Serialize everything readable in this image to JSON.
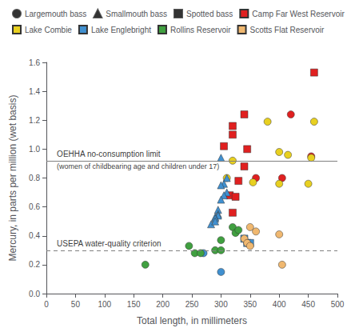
{
  "chart_data": {
    "type": "scatter",
    "xlabel": "Total length, in millimeters",
    "ylabel": "Mercury, in parts per million (wet basis)",
    "xlim": [
      0,
      500
    ],
    "ylim": [
      0,
      1.6
    ],
    "xticks": [
      0,
      50,
      100,
      150,
      200,
      250,
      300,
      350,
      400,
      450,
      500
    ],
    "yticks": [
      {
        "value": 0,
        "label": "0.0"
      },
      0.2,
      0.4,
      0.6,
      0.8,
      {
        "value": 1.0,
        "label": "1.0"
      },
      1.2,
      1.4,
      1.6
    ],
    "grid": false,
    "legend": "upper left",
    "species": [
      {
        "name": "Largemouth bass",
        "marker": "circle"
      },
      {
        "name": "Smallmouth bass",
        "marker": "triangle"
      },
      {
        "name": "Spotted bass",
        "marker": "square"
      }
    ],
    "series": [
      {
        "name": "Camp Far West Reservoir",
        "color": "#e02020",
        "x": [
          460,
          340,
          320,
          320,
          305,
          345,
          340,
          330,
          315,
          325,
          320,
          360,
          405,
          420,
          455
        ],
        "values": [
          1.53,
          1.24,
          1.16,
          1.1,
          1.02,
          1.0,
          0.88,
          0.78,
          0.68,
          0.67,
          0.56,
          0.8,
          0.8,
          1.24,
          0.95
        ],
        "species": [
          "Spotted bass",
          "Spotted bass",
          "Spotted bass",
          "Spotted bass",
          "Spotted bass",
          "Spotted bass",
          "Spotted bass",
          "Spotted bass",
          "Spotted bass",
          "Spotted bass",
          "Spotted bass",
          "Largemouth bass",
          "Largemouth bass",
          "Largemouth bass",
          "Largemouth bass"
        ]
      },
      {
        "name": "Lake Combie",
        "color": "#e8d020",
        "x": [
          380,
          400,
          415,
          455,
          460,
          320,
          310,
          355,
          400,
          450
        ],
        "values": [
          1.19,
          0.98,
          0.96,
          0.94,
          1.19,
          0.92,
          0.8,
          0.77,
          0.76,
          0.76
        ],
        "species": [
          "Largemouth bass",
          "Largemouth bass",
          "Largemouth bass",
          "Largemouth bass",
          "Largemouth bass",
          "Largemouth bass",
          "Largemouth bass",
          "Largemouth bass",
          "Largemouth bass",
          "Largemouth bass"
        ]
      },
      {
        "name": "Lake Englebright",
        "color": "#4090d0",
        "x": [
          300,
          310,
          305,
          300,
          310,
          305,
          300,
          295,
          295,
          295,
          290,
          290,
          283,
          290,
          270,
          300,
          340,
          345,
          350
        ],
        "values": [
          0.94,
          0.8,
          0.76,
          0.75,
          0.7,
          0.68,
          0.65,
          0.58,
          0.55,
          0.54,
          0.53,
          0.52,
          0.48,
          0.5,
          0.28,
          0.15,
          0.38,
          0.35,
          0.35
        ],
        "species": [
          "Smallmouth bass",
          "Smallmouth bass",
          "Smallmouth bass",
          "Smallmouth bass",
          "Smallmouth bass",
          "Smallmouth bass",
          "Smallmouth bass",
          "Smallmouth bass",
          "Smallmouth bass",
          "Smallmouth bass",
          "Smallmouth bass",
          "Smallmouth bass",
          "Smallmouth bass",
          "Smallmouth bass",
          "Largemouth bass",
          "Largemouth bass",
          "Spotted bass",
          "Spotted bass",
          "Spotted bass"
        ]
      },
      {
        "name": "Rollins Reservoir",
        "color": "#40a040",
        "x": [
          170,
          245,
          255,
          265,
          290,
          300,
          300,
          320,
          325,
          330
        ],
        "values": [
          0.2,
          0.33,
          0.28,
          0.28,
          0.3,
          0.3,
          0.37,
          0.46,
          0.42,
          0.44
        ],
        "species": [
          "Largemouth bass",
          "Largemouth bass",
          "Largemouth bass",
          "Largemouth bass",
          "Largemouth bass",
          "Largemouth bass",
          "Largemouth bass",
          "Largemouth bass",
          "Largemouth bass",
          "Largemouth bass"
        ]
      },
      {
        "name": "Scotts Flat Reservoir",
        "color": "#f0b870",
        "x": [
          340,
          345,
          350,
          360,
          400,
          405,
          350
        ],
        "values": [
          0.38,
          0.35,
          0.46,
          0.43,
          0.41,
          0.2,
          0.33
        ],
        "species": [
          "Largemouth bass",
          "Largemouth bass",
          "Largemouth bass",
          "Largemouth bass",
          "Largemouth bass",
          "Largemouth bass",
          "Largemouth bass"
        ]
      }
    ],
    "reference_lines": [
      {
        "y": 0.92,
        "color": "#808080",
        "line_style": "solid",
        "label_x": 18,
        "label": "OEHHA no-consumption limit",
        "sublabel": "(women of childbearing age and children under 17)"
      },
      {
        "y": 0.3,
        "color": "#808080",
        "line_style": "dashed",
        "label_x": 18,
        "label": "USEPA water-quality criterion"
      }
    ]
  }
}
